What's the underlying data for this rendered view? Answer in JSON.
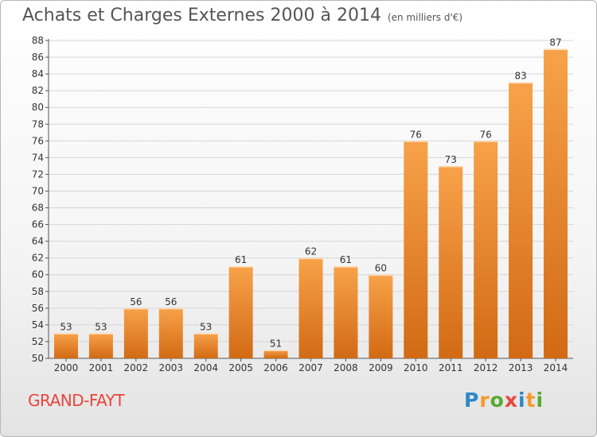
{
  "header": {
    "title": "Achats et Charges Externes 2000 à 2014",
    "unit_note": "(en milliers d'€)"
  },
  "footer": {
    "place": "GRAND-FAYT",
    "logo_letters": [
      "P",
      "r",
      "o",
      "x",
      "i",
      "t",
      "i"
    ],
    "logo_colors": [
      "#2e88c7",
      "#f39a2b",
      "#55aa33",
      "#e8453c",
      "#2e88c7",
      "#f39a2b",
      "#55aa33"
    ]
  },
  "colors": {
    "bar_light": "#f7a24a",
    "bar_dark": "#d26a14",
    "grid": "#d6d6d6",
    "place": "#e8453c"
  },
  "chart_data": {
    "type": "bar",
    "title": "Achats et Charges Externes 2000 à 2014",
    "subtitle": "(en milliers d'€)",
    "xlabel": "",
    "ylabel": "",
    "categories": [
      "2000",
      "2001",
      "2002",
      "2003",
      "2004",
      "2005",
      "2006",
      "2007",
      "2008",
      "2009",
      "2010",
      "2011",
      "2012",
      "2013",
      "2014"
    ],
    "values": [
      53,
      53,
      56,
      56,
      53,
      61,
      51,
      62,
      61,
      60,
      76,
      73,
      76,
      83,
      87
    ],
    "ylim": [
      50,
      88
    ],
    "y_ticks": [
      50,
      52,
      54,
      56,
      58,
      60,
      62,
      64,
      66,
      68,
      70,
      72,
      74,
      76,
      78,
      80,
      82,
      84,
      86,
      88
    ],
    "grid": true,
    "data_labels": true
  }
}
